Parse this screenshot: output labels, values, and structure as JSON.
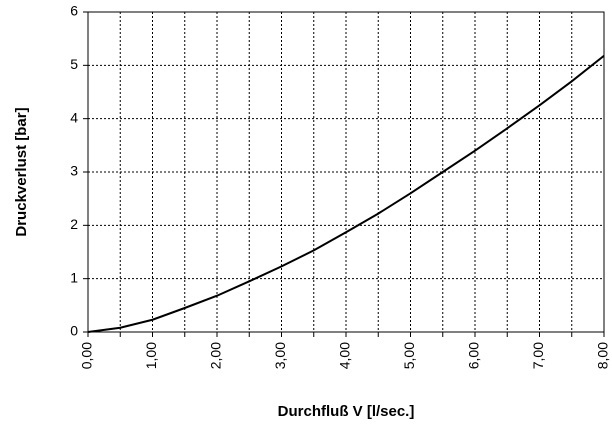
{
  "chart_data": {
    "type": "line",
    "x_label": "Durchfluß V [l/sec.]",
    "y_label": "Druckverlust [bar]",
    "x": [
      0,
      0.5,
      1,
      1.5,
      2,
      2.5,
      3,
      3.5,
      4,
      4.5,
      5,
      5.5,
      6,
      6.5,
      7,
      7.5,
      8
    ],
    "series": [
      {
        "color": "#000000",
        "values": [
          0,
          0.08,
          0.23,
          0.45,
          0.68,
          0.95,
          1.23,
          1.53,
          1.87,
          2.22,
          2.6,
          3.0,
          3.4,
          3.82,
          4.25,
          4.7,
          5.18
        ]
      }
    ],
    "xlim": [
      0,
      8
    ],
    "xticks": [
      {
        "value": 0,
        "label": "0,00"
      },
      {
        "value": 1,
        "label": "1,00"
      },
      {
        "value": 2,
        "label": "2,00"
      },
      {
        "value": 3,
        "label": "3,00"
      },
      {
        "value": 4,
        "label": "4,00"
      },
      {
        "value": 5,
        "label": "5,00"
      },
      {
        "value": 6,
        "label": "6,00"
      },
      {
        "value": 7,
        "label": "7,00"
      },
      {
        "value": 8,
        "label": "8,00"
      }
    ],
    "xminorticks": [
      0.5,
      1.5,
      2.5,
      3.5,
      4.5,
      5.5,
      6.5,
      7.5
    ],
    "ylim": [
      0,
      6
    ],
    "yticks": [
      0,
      1,
      2,
      3,
      4,
      5,
      6
    ],
    "grid": true
  }
}
